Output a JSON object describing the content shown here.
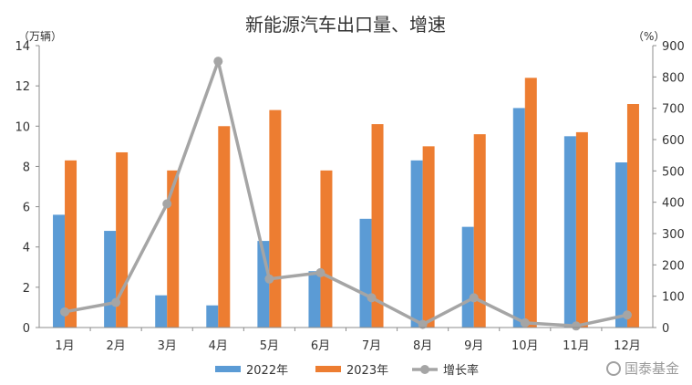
{
  "chart_data": {
    "type": "bar",
    "title": "新能源汽车出口量、增速",
    "y_left_unit": "（万辆）",
    "y_right_unit": "（%）",
    "ylim_left": [
      0,
      14
    ],
    "ylim_right": [
      0,
      900
    ],
    "left_ticks": [
      "0",
      "2",
      "4",
      "6",
      "8",
      "10",
      "12",
      "14"
    ],
    "right_ticks": [
      "0",
      "100",
      "200",
      "300",
      "400",
      "500",
      "600",
      "700",
      "800",
      "900"
    ],
    "categories": [
      "1月",
      "2月",
      "3月",
      "4月",
      "5月",
      "6月",
      "7月",
      "8月",
      "9月",
      "10月",
      "11月",
      "12月"
    ],
    "series": [
      {
        "name": "2022年",
        "type": "bar",
        "axis": "left",
        "color": "#5b9bd5",
        "values": [
          5.6,
          4.8,
          1.6,
          1.1,
          4.3,
          2.8,
          5.4,
          8.3,
          5.0,
          10.9,
          9.5,
          8.2
        ]
      },
      {
        "name": "2023年",
        "type": "bar",
        "axis": "left",
        "color": "#ed7d31",
        "values": [
          8.3,
          8.7,
          7.8,
          10.0,
          10.8,
          7.8,
          10.1,
          9.0,
          9.6,
          12.4,
          9.7,
          11.1
        ]
      },
      {
        "name": "增长率",
        "type": "line",
        "axis": "right",
        "color": "#a5a5a5",
        "values": [
          50,
          80,
          395,
          850,
          155,
          175,
          95,
          10,
          95,
          15,
          5,
          40
        ]
      }
    ],
    "legend_position": "bottom",
    "grid": false
  },
  "watermark": {
    "icon": "weibo-icon",
    "text": "国泰基金"
  }
}
